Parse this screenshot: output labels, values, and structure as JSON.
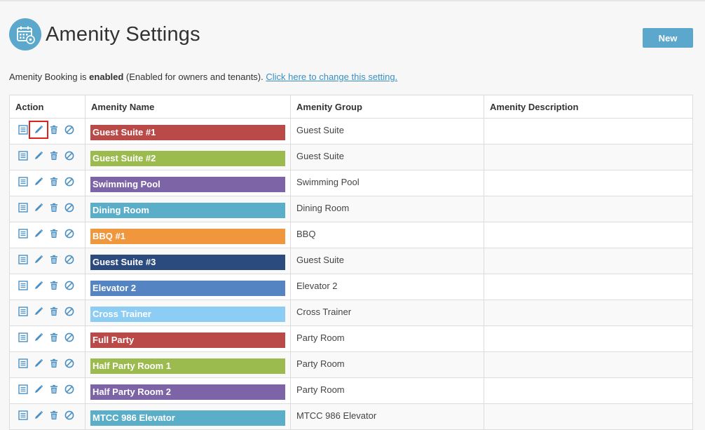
{
  "header": {
    "title": "Amenity Settings",
    "icon": "calendar-gear-icon",
    "new_label": "New"
  },
  "status": {
    "prefix": "Amenity Booking is ",
    "state": "enabled",
    "detail": " (Enabled for owners and tenants). ",
    "link": "Click here to change this setting."
  },
  "table": {
    "columns": [
      "Action",
      "Amenity Name",
      "Amenity Group",
      "Amenity Description"
    ],
    "action_icons": [
      "list-icon",
      "pencil-icon",
      "trash-icon",
      "disable-icon"
    ],
    "rows": [
      {
        "name": "Guest Suite #1",
        "group": "Guest Suite",
        "description": "",
        "color": "#b94a48"
      },
      {
        "name": "Guest Suite #2",
        "group": "Guest Suite",
        "description": "",
        "color": "#9cbb4e"
      },
      {
        "name": "Swimming Pool",
        "group": "Swimming Pool",
        "description": "",
        "color": "#7c64a6"
      },
      {
        "name": "Dining Room",
        "group": "Dining Room",
        "description": "",
        "color": "#5aaec8"
      },
      {
        "name": "BBQ #1",
        "group": "BBQ",
        "description": "",
        "color": "#f0973e"
      },
      {
        "name": "Guest Suite #3",
        "group": "Guest Suite",
        "description": "",
        "color": "#2b4a7e"
      },
      {
        "name": "Elevator 2",
        "group": "Elevator 2",
        "description": "",
        "color": "#5584c2"
      },
      {
        "name": "Cross Trainer",
        "group": "Cross Trainer",
        "description": "",
        "color": "#8dcdf4"
      },
      {
        "name": "Full Party",
        "group": "Party Room",
        "description": "",
        "color": "#b94a48"
      },
      {
        "name": "Half Party Room 1",
        "group": "Party Room",
        "description": "",
        "color": "#9cbb4e"
      },
      {
        "name": "Half Party Room 2",
        "group": "Party Room",
        "description": "",
        "color": "#7c64a6"
      },
      {
        "name": "MTCC 986 Elevator",
        "group": "MTCC 986 Elevator",
        "description": "",
        "color": "#5aaec8"
      }
    ]
  },
  "colors": {
    "accent": "#5ba8cc",
    "icon_blue": "#4a90c4",
    "highlight": "#e0201b"
  }
}
